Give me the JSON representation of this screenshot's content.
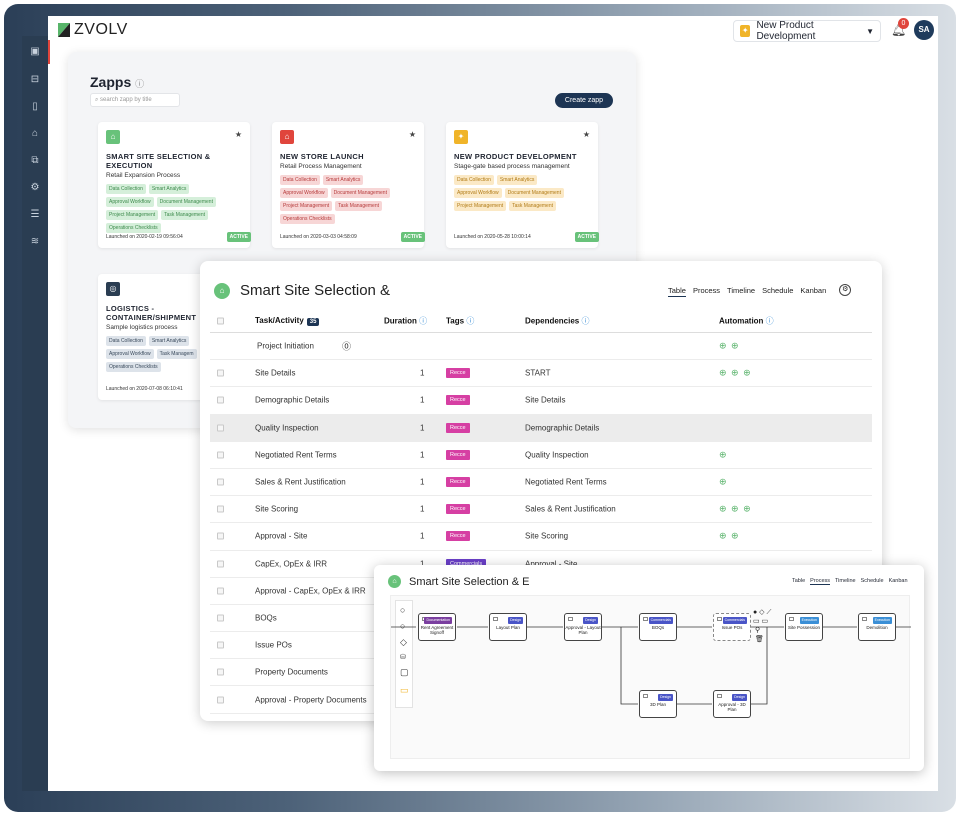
{
  "app": {
    "logo_text": "ZVOLV"
  },
  "header": {
    "project": "New Product Development",
    "notifications": "0",
    "avatar": "SA"
  },
  "zapps": {
    "title": "Zapps",
    "search_placeholder": "search zapp by title",
    "create_label": "Create zapp",
    "cards": [
      {
        "title": "SMART SITE SELECTION & EXECUTION",
        "subtitle": "Retail Expansion Process",
        "tags": [
          "Data Collection",
          "Smart Analytics",
          "Approval Workflow",
          "Document Management",
          "Project Management",
          "Task Management",
          "Operations Checklists"
        ],
        "launched": "Launched on 2020-02-19 09:56:04",
        "status": "ACTIVE",
        "color": "#68c27a"
      },
      {
        "title": "NEW STORE LAUNCH",
        "subtitle": "Retail Process Management",
        "tags": [
          "Data Collection",
          "Smart Analytics",
          "Approval Workflow",
          "Document Management",
          "Project Management",
          "Task Management",
          "Operations Checklists"
        ],
        "launched": "Launched on 2020-03-03 04:58:09",
        "status": "ACTIVE",
        "color": "#e0453c"
      },
      {
        "title": "NEW PRODUCT DEVELOPMENT",
        "subtitle": "Stage-gate based process management",
        "tags": [
          "Data Collection",
          "Smart Analytics",
          "Approval Workflow",
          "Document Management",
          "Project Management",
          "Task Management"
        ],
        "launched": "Launched on 2020-05-28 10:00:14",
        "status": "ACTIVE",
        "color": "#f0b429"
      },
      {
        "title": "LOGISTICS - CONTAINER/SHIPMENT",
        "subtitle": "Sample logistics process",
        "tags": [
          "Data Collection",
          "Smart Analytics",
          "Approval Workflow",
          "Task Managem",
          "Operations Checklists"
        ],
        "launched": "Launched on 2020-07-08 06:10:41",
        "status": "",
        "color": "#2a3d52"
      }
    ]
  },
  "table_view": {
    "title": "Smart Site Selection &",
    "views": [
      "Table",
      "Process",
      "Timeline",
      "Schedule",
      "Kanban"
    ],
    "active_view": "Table",
    "columns": {
      "task": "Task/Activity",
      "count": "35",
      "duration": "Duration",
      "tags": "Tags",
      "dependencies": "Dependencies",
      "automation": "Automation"
    },
    "rows": [
      {
        "task": "Project Initiation",
        "duration": "",
        "tag": "",
        "dep": "",
        "auto": "⊕ ⊕",
        "group": true
      },
      {
        "task": "Site Details",
        "duration": "1",
        "tag": "Recce",
        "dep": "START",
        "auto": "⊕ ⊕ ⊕"
      },
      {
        "task": "Demographic Details",
        "duration": "1",
        "tag": "Recce",
        "dep": "Site Details",
        "auto": ""
      },
      {
        "task": "Quality Inspection",
        "duration": "1",
        "tag": "Recce",
        "dep": "Demographic Details",
        "auto": "",
        "selected": true
      },
      {
        "task": "Negotiated Rent Terms",
        "duration": "1",
        "tag": "Recce",
        "dep": "Quality Inspection",
        "auto": "⊕"
      },
      {
        "task": "Sales & Rent Justification",
        "duration": "1",
        "tag": "Recce",
        "dep": "Negotiated Rent Terms",
        "auto": "⊕"
      },
      {
        "task": "Site Scoring",
        "duration": "1",
        "tag": "Recce",
        "dep": "Sales & Rent Justification",
        "auto": "⊕ ⊕ ⊕"
      },
      {
        "task": "Approval - Site",
        "duration": "1",
        "tag": "Recce",
        "dep": "Site Scoring",
        "auto": "⊕ ⊕"
      },
      {
        "task": "CapEx, OpEx & IRR",
        "duration": "1",
        "tag": "Commercials",
        "dep": "Approval - Site",
        "auto": ""
      },
      {
        "task": "Approval - CapEx, OpEx & IRR",
        "duration": "",
        "tag": "",
        "dep": "",
        "auto": ""
      },
      {
        "task": "BOQs",
        "duration": "",
        "tag": "",
        "dep": "",
        "auto": ""
      },
      {
        "task": "Issue POs",
        "duration": "",
        "tag": "",
        "dep": "",
        "auto": ""
      },
      {
        "task": "Property Documents",
        "duration": "",
        "tag": "",
        "dep": "",
        "auto": ""
      },
      {
        "task": "Approval - Property Documents",
        "duration": "",
        "tag": "",
        "dep": "",
        "auto": ""
      }
    ]
  },
  "process_view": {
    "title": "Smart Site Selection & E",
    "views": [
      "Table",
      "Process",
      "Timeline",
      "Schedule",
      "Kanban"
    ],
    "active_view": "Process",
    "nodes": [
      {
        "label": "Rent Agreement Signoff",
        "tag": "Documentation",
        "tag_color": "#7b3fa0"
      },
      {
        "label": "Layout Plan",
        "tag": "Design",
        "tag_color": "#4a55c7"
      },
      {
        "label": "Approval - Layout Plan",
        "tag": "Design",
        "tag_color": "#4a55c7"
      },
      {
        "label": "BOQs",
        "tag": "Commercials",
        "tag_color": "#4a55c7"
      },
      {
        "label": "Issue POs",
        "tag": "Commercials",
        "tag_color": "#4a55c7"
      },
      {
        "label": "Site Possession",
        "tag": "Execution",
        "tag_color": "#3b8fd6"
      },
      {
        "label": "Demolition",
        "tag": "Execution",
        "tag_color": "#3b8fd6"
      },
      {
        "label": "3D Plan",
        "tag": "Design",
        "tag_color": "#4a55c7"
      },
      {
        "label": "Approval - 3D Plan",
        "tag": "Design",
        "tag_color": "#4a55c7"
      }
    ]
  }
}
